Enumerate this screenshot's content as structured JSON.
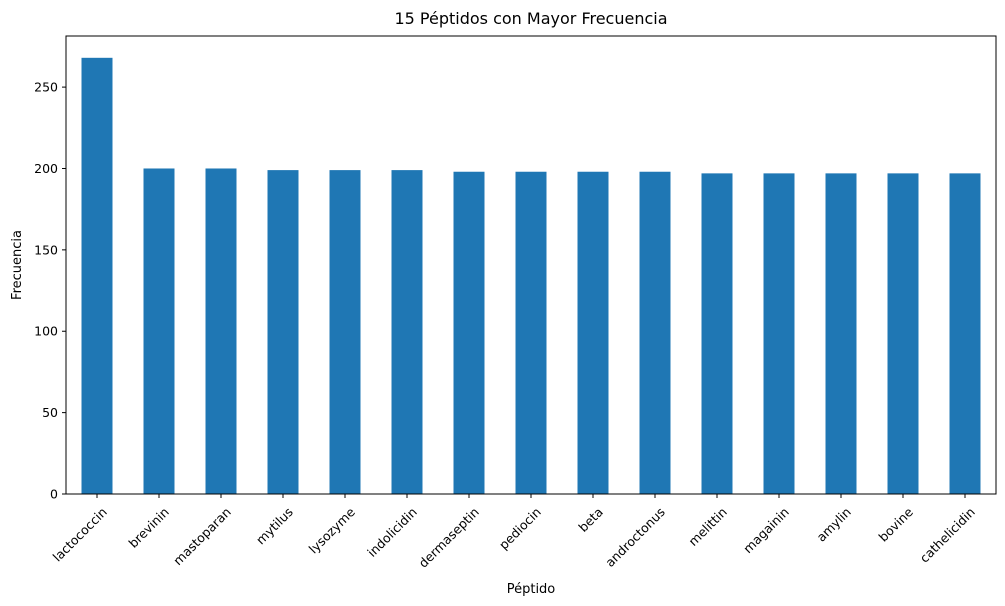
{
  "chart_data": {
    "type": "bar",
    "title": "15 Péptidos con Mayor Frecuencia",
    "xlabel": "Péptido",
    "ylabel": "Frecuencia",
    "categories": [
      "lactococcin",
      "brevinin",
      "mastoparan",
      "mytilus",
      "lysozyme",
      "indolicidin",
      "dermaseptin",
      "pediocin",
      "beta",
      "androctonus",
      "melittin",
      "magainin",
      "amylin",
      "bovine",
      "cathelicidin"
    ],
    "values": [
      268,
      200,
      200,
      199,
      199,
      199,
      198,
      198,
      198,
      198,
      197,
      197,
      197,
      197,
      197
    ],
    "ylim": [
      0,
      281.4
    ],
    "yticks": [
      0,
      50,
      100,
      150,
      200,
      250
    ],
    "bar_color": "#1f77b4",
    "grid": false,
    "legend": "none"
  }
}
